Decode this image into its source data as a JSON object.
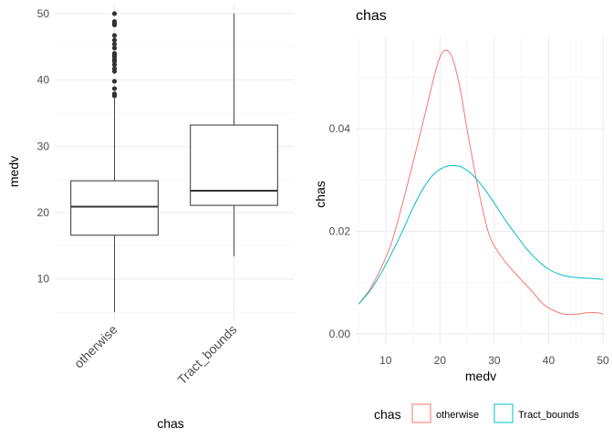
{
  "chart_data": [
    {
      "type": "boxplot",
      "title": "",
      "xlabel": "chas",
      "ylabel": "medv",
      "ylim": [
        3.5,
        51.5
      ],
      "yticks": [
        10,
        20,
        30,
        40,
        50
      ],
      "grid": true,
      "categories": [
        "otherwise",
        "Tract_bounds"
      ],
      "boxes": [
        {
          "category": "otherwise",
          "min": 5.0,
          "q1": 16.6,
          "median": 20.9,
          "q3": 24.8,
          "max": 37.2,
          "outliers": [
            37.6,
            37.9,
            38.7,
            39.8,
            41.3,
            41.7,
            42.3,
            42.8,
            43.1,
            43.5,
            43.8,
            44.0,
            44.8,
            45.4,
            46.0,
            46.7,
            48.3,
            48.5,
            48.8,
            50.0
          ]
        },
        {
          "category": "Tract_bounds",
          "min": 13.4,
          "q1": 21.1,
          "median": 23.3,
          "q3": 33.2,
          "max": 50.0,
          "outliers": []
        }
      ]
    },
    {
      "type": "line",
      "title": "chas",
      "xlabel": "medv",
      "ylabel": "chas",
      "xlim": [
        4.5,
        50.5
      ],
      "ylim": [
        -0.002,
        0.058
      ],
      "xticks": [
        10,
        20,
        30,
        40,
        50
      ],
      "yticks": [
        0.0,
        0.02,
        0.04
      ],
      "ytick_labels": [
        "0.00",
        "0.02",
        "0.04"
      ],
      "grid": true,
      "legend": {
        "title": "chas",
        "position": "bottom"
      },
      "series": [
        {
          "name": "otherwise",
          "color": "#F8766D",
          "x": [
            5,
            7,
            9,
            11,
            13,
            15,
            17,
            19,
            20,
            21,
            22,
            23,
            24,
            25,
            27,
            29,
            31,
            33,
            35,
            37,
            39,
            41,
            43,
            45,
            47,
            49,
            50
          ],
          "y": [
            0.0058,
            0.0085,
            0.0125,
            0.0175,
            0.025,
            0.0332,
            0.0418,
            0.0505,
            0.054,
            0.0553,
            0.0545,
            0.0512,
            0.0462,
            0.0398,
            0.0285,
            0.0195,
            0.0155,
            0.0128,
            0.0105,
            0.0082,
            0.0058,
            0.0045,
            0.0038,
            0.0038,
            0.0041,
            0.0041,
            0.0038
          ]
        },
        {
          "name": "Tract_bounds",
          "color": "#00BFC4",
          "x": [
            5,
            7,
            9,
            11,
            13,
            15,
            17,
            19,
            21,
            22.5,
            24,
            26,
            28,
            30,
            32,
            34,
            36,
            38,
            40,
            42,
            44,
            46,
            48,
            50
          ],
          "y": [
            0.0058,
            0.0082,
            0.0115,
            0.0155,
            0.0198,
            0.0245,
            0.0285,
            0.0313,
            0.0326,
            0.0328,
            0.0325,
            0.031,
            0.0285,
            0.0255,
            0.0222,
            0.0193,
            0.0165,
            0.0143,
            0.0126,
            0.0116,
            0.0111,
            0.0109,
            0.0108,
            0.0106
          ]
        }
      ]
    }
  ]
}
